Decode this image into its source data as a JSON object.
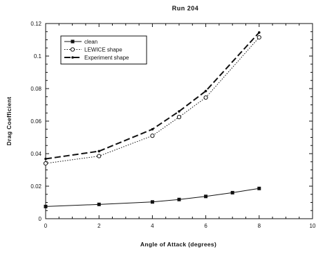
{
  "chart_data": {
    "type": "line",
    "title": "Run 204",
    "xlabel": "Angle of Attack (degrees)",
    "ylabel": "Drag Coefficient",
    "xlim": [
      0,
      10
    ],
    "ylim": [
      0,
      0.12
    ],
    "x_ticks": [
      "0",
      "2",
      "4",
      "6",
      "8",
      "10"
    ],
    "y_ticks": [
      "0",
      "0.02",
      "0.04",
      "0.06",
      "0.08",
      "0.1",
      "0.12"
    ],
    "grid": false,
    "legend_position": "top-left",
    "series": [
      {
        "name": "clean",
        "style": "solid",
        "marker": "filled-square",
        "color": "#111111",
        "x": [
          0,
          2,
          4,
          5,
          6,
          7,
          8
        ],
        "y": [
          0.0075,
          0.0088,
          0.0103,
          0.0118,
          0.0137,
          0.016,
          0.0186
        ]
      },
      {
        "name": "LEWICE shape",
        "style": "dotted",
        "marker": "open-circle",
        "color": "#111111",
        "x": [
          0,
          2,
          4,
          5,
          6,
          8
        ],
        "y": [
          0.034,
          0.0385,
          0.051,
          0.0625,
          0.0745,
          0.1115
        ]
      },
      {
        "name": "Experiment shape",
        "style": "dashed",
        "marker": "small-dot",
        "color": "#111111",
        "x": [
          0,
          2,
          4,
          5,
          6,
          8
        ],
        "y": [
          0.0368,
          0.0415,
          0.055,
          0.066,
          0.0785,
          0.1145
        ]
      }
    ]
  }
}
